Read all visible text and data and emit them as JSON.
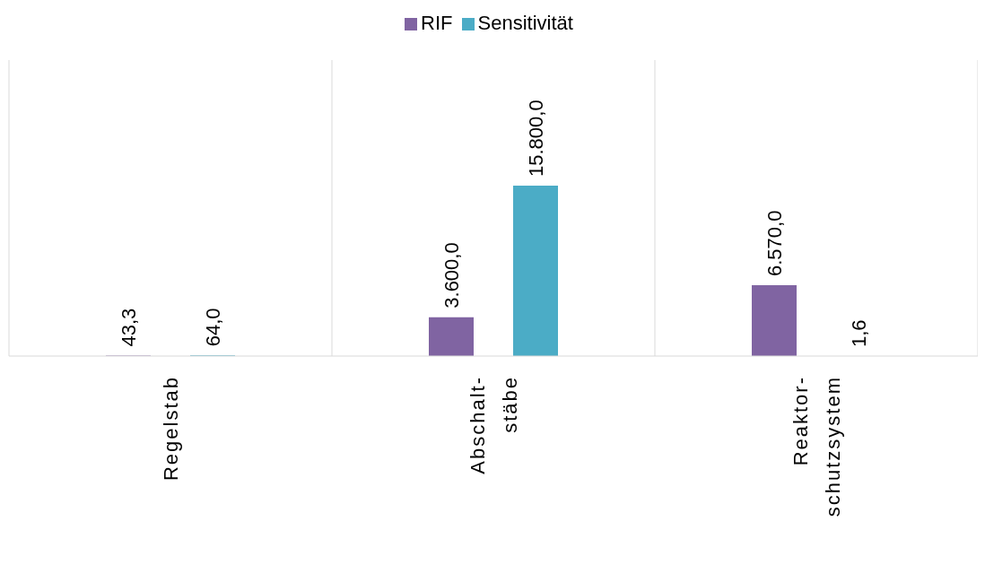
{
  "chart_data": {
    "type": "bar",
    "categories": [
      "Regelstab",
      "Abschalt- stäbe",
      "Reaktor- schutzsystem"
    ],
    "series": [
      {
        "name": "RIF",
        "color": "#8064a2",
        "values": [
          43.3,
          3600,
          6570
        ],
        "value_labels": [
          "43,3",
          "3.600,0",
          "6.570,0"
        ]
      },
      {
        "name": "Sensitivität",
        "color": "#4bacc6",
        "values": [
          64,
          15800,
          1.6
        ],
        "value_labels": [
          "64,0",
          "15.800,0",
          "1,6"
        ]
      }
    ],
    "legend": "top",
    "grid": "x"
  }
}
